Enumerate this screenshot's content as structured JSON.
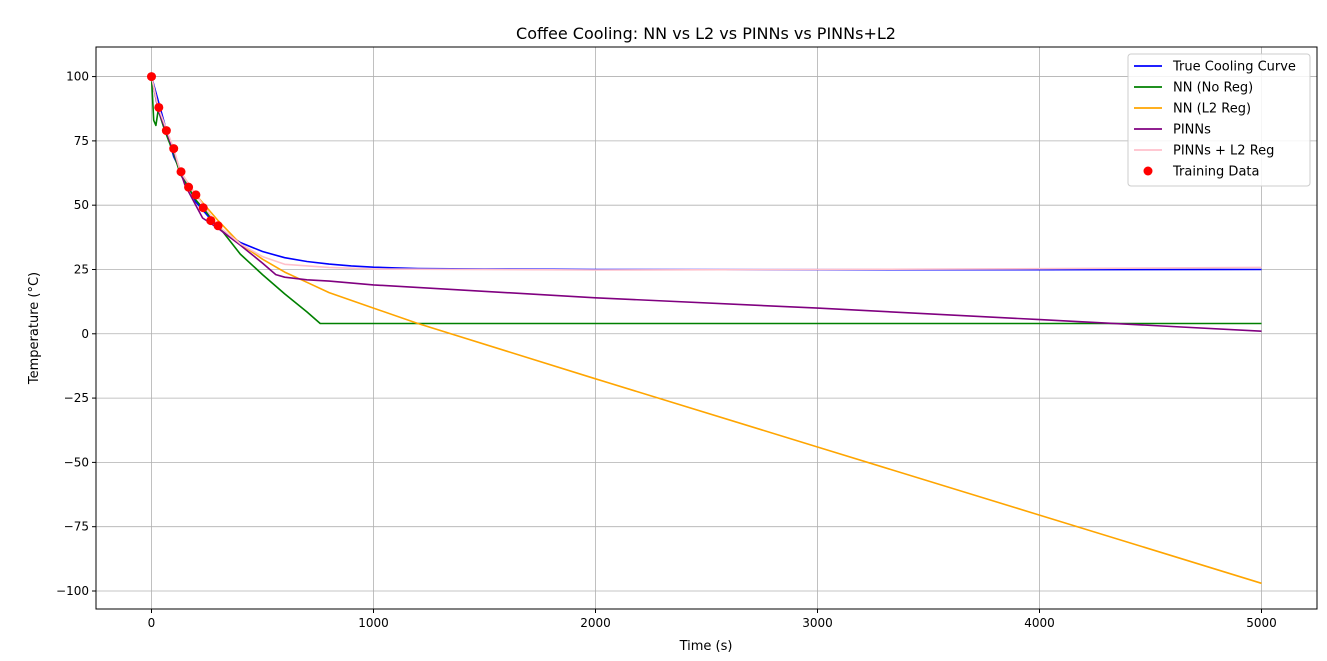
{
  "chart_data": {
    "type": "line",
    "title": "Coffee Cooling: NN vs L2 vs PINNs vs PINNs+L2",
    "xlabel": "Time (s)",
    "ylabel": "Temperature (°C)",
    "xlim": [
      -250,
      5250
    ],
    "ylim": [
      -107,
      111.5
    ],
    "x_ticks": [
      0,
      1000,
      2000,
      3000,
      4000,
      5000
    ],
    "y_ticks": [
      -100,
      -75,
      -50,
      -25,
      0,
      25,
      50,
      75,
      100
    ],
    "grid": true,
    "legend_position": "top-right",
    "series": [
      {
        "name": "True Cooling Curve",
        "color": "#0000ff",
        "kind": "line",
        "x": [
          0,
          100,
          200,
          300,
          400,
          500,
          600,
          700,
          800,
          900,
          1000,
          1100,
          1200,
          1500,
          2000,
          3000,
          4000,
          5000
        ],
        "y": [
          100,
          68.9,
          51.2,
          41.2,
          35.5,
          32.0,
          29.6,
          28.1,
          27.1,
          26.4,
          25.9,
          25.6,
          25.4,
          25.2,
          25.0,
          24.9,
          24.9,
          25.0
        ]
      },
      {
        "name": "NN (No Reg)",
        "color": "#008000",
        "kind": "line",
        "x": [
          0,
          10,
          20,
          30,
          60,
          100,
          130,
          200,
          300,
          400,
          500,
          600,
          700,
          760,
          1000,
          2000,
          3000,
          4000,
          5000
        ],
        "y": [
          100,
          83,
          81,
          87,
          79,
          70,
          62,
          52,
          42,
          31,
          23,
          15.5,
          8.5,
          4,
          4,
          4,
          4,
          4,
          4
        ]
      },
      {
        "name": "NN (L2 Reg)",
        "color": "#ffa500",
        "kind": "line",
        "x": [
          0,
          30,
          100,
          130,
          200,
          300,
          400,
          500,
          600,
          700,
          800,
          1000,
          1200,
          2000,
          3000,
          4000,
          5000
        ],
        "y": [
          100,
          88,
          71.5,
          63,
          54,
          44,
          35,
          29,
          24,
          20,
          16,
          10,
          4,
          -17.5,
          -44,
          -70.5,
          -97
        ]
      },
      {
        "name": "PINNs",
        "color": "#800080",
        "kind": "line",
        "x": [
          0,
          30,
          100,
          150,
          230,
          300,
          400,
          500,
          560,
          600,
          700,
          800,
          1000,
          2000,
          3000,
          4000,
          5000
        ],
        "y": [
          100,
          87,
          71,
          58,
          45,
          41,
          34.5,
          27.5,
          23,
          22,
          21,
          20.5,
          19,
          14,
          10,
          5.5,
          1
        ]
      },
      {
        "name": "PINNs + L2 Reg",
        "color": "#ffc0cb",
        "kind": "line",
        "x": [
          0,
          30,
          100,
          130,
          200,
          300,
          400,
          500,
          600,
          800,
          1000,
          2000,
          3000,
          4000,
          5000
        ],
        "y": [
          100,
          88,
          72,
          63,
          54,
          42,
          35,
          30,
          27,
          25.8,
          25.2,
          24.8,
          25,
          25.3,
          25.8
        ]
      },
      {
        "name": "Training Data",
        "color": "#ff0000",
        "kind": "scatter",
        "x": [
          0,
          33,
          67,
          100,
          133,
          167,
          200,
          233,
          267,
          300
        ],
        "y": [
          100,
          88,
          79,
          72,
          63,
          57,
          54,
          49,
          44,
          42
        ]
      }
    ]
  }
}
